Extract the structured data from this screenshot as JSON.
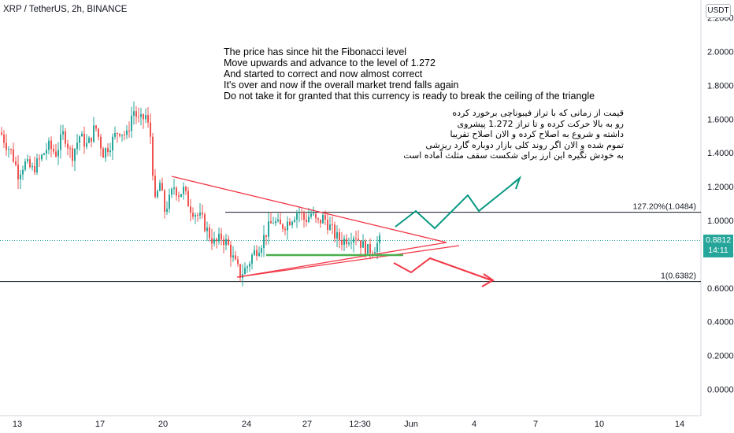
{
  "header": {
    "symbol": "XRP / TetherUS, 2h, BINANCE",
    "currency_button": "USDT"
  },
  "annotations": {
    "english": [
      "The price has since hit the Fibonacci level",
      "Move upwards and advance to the level of 1.272",
      "And started to correct and now almost correct",
      "It's over and now if the overall market trend falls again",
      "Do not take it for granted that this currency is ready to break the ceiling of the triangle"
    ],
    "persian": [
      "قیمت از زمانی که با تراز فیبوناچی برخورد کرده",
      "رو به بالا حرکت کرده  و تا تراز 1.272 پیشروی",
      "داشته و شروع به اصلاح کرده و الان اصلاح تقریبا",
      "تموم شده و الان اگر روند کلی بازار دوباره گارد ریزشی",
      "به خودش نگیره این ارز برای شکست سقف مثلث آماده است"
    ]
  },
  "price_tag": {
    "value": "0.8812",
    "countdown": "14:11"
  },
  "colors": {
    "up": "#26a69a",
    "down": "#ef5350",
    "candle": "#26a69a",
    "triangle": "#f23645",
    "support": "#4caf50",
    "bull_path": "#089981",
    "bear_path": "#f23645"
  },
  "chart_data": {
    "type": "candlestick",
    "y_axis_labels": [
      "0.0000",
      "0.2000",
      "0.4000",
      "0.6000",
      "0.8000",
      "1.0000",
      "1.2000",
      "1.4000",
      "1.6000",
      "1.8000",
      "2.0000",
      "2.2000"
    ],
    "x_axis_labels": [
      "13",
      "17",
      "20",
      "24",
      "27",
      "12:30",
      "Jun",
      "4",
      "7",
      "10",
      "14"
    ],
    "ylim": [
      -0.05,
      2.25
    ],
    "fib_levels": [
      {
        "label": "127.20%(1.0484)",
        "value": 1.0484
      },
      {
        "label": "1(0.6382)",
        "value": 0.6382
      }
    ],
    "current_price": 0.8812,
    "close_path": [
      [
        0,
        1.52
      ],
      [
        6,
        1.46
      ],
      [
        14,
        1.4
      ],
      [
        22,
        1.28
      ],
      [
        30,
        1.34
      ],
      [
        40,
        1.3
      ],
      [
        50,
        1.36
      ],
      [
        60,
        1.44
      ],
      [
        70,
        1.4
      ],
      [
        80,
        1.52
      ],
      [
        90,
        1.38
      ],
      [
        100,
        1.5
      ],
      [
        110,
        1.44
      ],
      [
        120,
        1.56
      ],
      [
        130,
        1.4
      ],
      [
        140,
        1.46
      ],
      [
        150,
        1.54
      ],
      [
        160,
        1.5
      ],
      [
        168,
        1.66
      ],
      [
        176,
        1.58
      ],
      [
        184,
        1.62
      ],
      [
        190,
        1.5
      ],
      [
        196,
        1.1
      ],
      [
        202,
        1.22
      ],
      [
        208,
        1.06
      ],
      [
        214,
        1.12
      ],
      [
        220,
        1.2
      ],
      [
        226,
        1.16
      ],
      [
        232,
        1.18
      ],
      [
        240,
        1.08
      ],
      [
        248,
        1.04
      ],
      [
        256,
        1.0
      ],
      [
        264,
        0.92
      ],
      [
        272,
        0.86
      ],
      [
        280,
        0.9
      ],
      [
        288,
        0.86
      ],
      [
        296,
        0.76
      ],
      [
        304,
        0.68
      ],
      [
        312,
        0.72
      ],
      [
        320,
        0.8
      ],
      [
        330,
        0.86
      ],
      [
        338,
        0.94
      ],
      [
        346,
        1.0
      ],
      [
        354,
        0.96
      ],
      [
        362,
        0.98
      ],
      [
        370,
        1.02
      ],
      [
        378,
        1.06
      ],
      [
        386,
        1.0
      ],
      [
        394,
        1.04
      ],
      [
        402,
        0.98
      ],
      [
        410,
        1.02
      ],
      [
        418,
        0.96
      ],
      [
        426,
        0.9
      ],
      [
        434,
        0.88
      ],
      [
        442,
        0.9
      ],
      [
        450,
        0.92
      ],
      [
        458,
        0.86
      ],
      [
        466,
        0.82
      ],
      [
        474,
        0.84
      ],
      [
        482,
        0.88
      ]
    ]
  }
}
